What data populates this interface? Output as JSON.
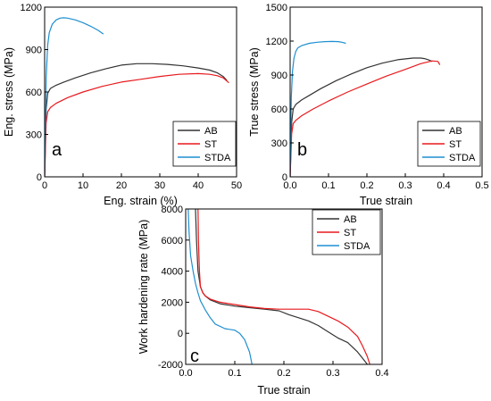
{
  "chart_data": [
    {
      "type": "line",
      "panel_label": "a",
      "xlabel": "Eng. strain (%)",
      "ylabel": "Eng. stress (MPa)",
      "xlim": [
        0,
        50
      ],
      "ylim": [
        0,
        1200
      ],
      "xticks": [
        0,
        10,
        20,
        30,
        40,
        50
      ],
      "yticks": [
        0,
        300,
        600,
        900,
        1200
      ],
      "grid": false,
      "legend": "bottom-right",
      "series": [
        {
          "name": "AB",
          "color": "#333333",
          "x": [
            0,
            0.4,
            0.8,
            1.5,
            3,
            5,
            8,
            12,
            16,
            20,
            24,
            28,
            32,
            36,
            40,
            43,
            45,
            46.5,
            47.5
          ],
          "y": [
            0,
            480,
            590,
            625,
            648,
            670,
            700,
            735,
            765,
            790,
            800,
            800,
            795,
            785,
            770,
            755,
            735,
            710,
            680
          ]
        },
        {
          "name": "ST",
          "color": "#e8191d",
          "x": [
            0,
            0.4,
            0.8,
            1.5,
            3,
            6,
            10,
            15,
            20,
            25,
            30,
            35,
            40,
            43,
            45,
            46.5,
            48
          ],
          "y": [
            0,
            380,
            460,
            490,
            520,
            560,
            600,
            640,
            670,
            690,
            710,
            725,
            730,
            725,
            715,
            700,
            665
          ]
        },
        {
          "name": "STDA",
          "color": "#1e8fd0",
          "x": [
            0,
            0.4,
            0.8,
            1.2,
            2,
            3,
            4,
            5,
            6,
            8,
            10,
            12,
            14,
            15.3
          ],
          "y": [
            0,
            700,
            930,
            1020,
            1080,
            1110,
            1122,
            1125,
            1122,
            1110,
            1090,
            1065,
            1035,
            1010
          ]
        }
      ]
    },
    {
      "type": "line",
      "panel_label": "b",
      "xlabel": "True strain",
      "ylabel": "True stress (MPa)",
      "xlim": [
        0,
        0.5
      ],
      "ylim": [
        0,
        1500
      ],
      "xticks": [
        0.0,
        0.1,
        0.2,
        0.3,
        0.4,
        0.5
      ],
      "yticks": [
        0,
        300,
        600,
        900,
        1200,
        1500
      ],
      "xtick_labels": [
        "0.0",
        "0.1",
        "0.2",
        "0.3",
        "0.4",
        "0.5"
      ],
      "grid": false,
      "legend": "bottom-right",
      "series": [
        {
          "name": "AB",
          "color": "#333333",
          "x": [
            0,
            0.004,
            0.008,
            0.015,
            0.03,
            0.05,
            0.08,
            0.12,
            0.16,
            0.2,
            0.24,
            0.28,
            0.32,
            0.34,
            0.35,
            0.36,
            0.37
          ],
          "y": [
            0,
            480,
            600,
            640,
            680,
            720,
            780,
            850,
            910,
            965,
            1005,
            1035,
            1050,
            1050,
            1045,
            1035,
            1020
          ]
        },
        {
          "name": "ST",
          "color": "#e8191d",
          "x": [
            0,
            0.004,
            0.008,
            0.015,
            0.03,
            0.06,
            0.1,
            0.15,
            0.2,
            0.25,
            0.3,
            0.34,
            0.37,
            0.385,
            0.39
          ],
          "y": [
            0,
            380,
            470,
            500,
            540,
            600,
            670,
            750,
            820,
            890,
            950,
            1000,
            1025,
            1020,
            990
          ]
        },
        {
          "name": "STDA",
          "color": "#1e8fd0",
          "x": [
            0,
            0.003,
            0.006,
            0.01,
            0.015,
            0.02,
            0.03,
            0.05,
            0.07,
            0.09,
            0.11,
            0.125,
            0.135,
            0.145
          ],
          "y": [
            0,
            700,
            930,
            1050,
            1110,
            1140,
            1160,
            1180,
            1190,
            1195,
            1197,
            1195,
            1190,
            1180
          ]
        }
      ]
    },
    {
      "type": "line",
      "panel_label": "c",
      "xlabel": "True strain",
      "ylabel": "Work hardening rate (MPa)",
      "xlim": [
        0,
        0.4
      ],
      "ylim": [
        -2000,
        8000
      ],
      "xticks": [
        0.0,
        0.1,
        0.2,
        0.3,
        0.4
      ],
      "yticks": [
        -2000,
        0,
        2000,
        4000,
        6000,
        8000
      ],
      "xtick_labels": [
        "0.0",
        "0.1",
        "0.2",
        "0.3",
        "0.4"
      ],
      "grid": false,
      "legend": "top-right",
      "series": [
        {
          "name": "AB",
          "color": "#333333",
          "x": [
            0.02,
            0.022,
            0.025,
            0.03,
            0.035,
            0.04,
            0.05,
            0.07,
            0.1,
            0.13,
            0.16,
            0.19,
            0.21,
            0.23,
            0.25,
            0.27,
            0.29,
            0.31,
            0.33,
            0.35,
            0.36,
            0.37
          ],
          "y": [
            8000,
            6000,
            4000,
            3000,
            2600,
            2400,
            2150,
            1900,
            1750,
            1650,
            1550,
            1450,
            1200,
            1000,
            800,
            500,
            100,
            -300,
            -600,
            -1200,
            -1600,
            -2000
          ]
        },
        {
          "name": "ST",
          "color": "#e8191d",
          "x": [
            0.025,
            0.026,
            0.028,
            0.03,
            0.035,
            0.04,
            0.05,
            0.07,
            0.1,
            0.13,
            0.16,
            0.19,
            0.22,
            0.25,
            0.27,
            0.29,
            0.31,
            0.33,
            0.35,
            0.36,
            0.37,
            0.375
          ],
          "y": [
            8000,
            6000,
            4000,
            3000,
            2600,
            2400,
            2200,
            2000,
            1850,
            1700,
            1600,
            1550,
            1550,
            1550,
            1400,
            1100,
            800,
            400,
            -200,
            -800,
            -1500,
            -2000
          ]
        },
        {
          "name": "STDA",
          "color": "#1e8fd0",
          "x": [
            0.005,
            0.007,
            0.01,
            0.015,
            0.02,
            0.025,
            0.03,
            0.04,
            0.05,
            0.06,
            0.08,
            0.1,
            0.11,
            0.12,
            0.13,
            0.135
          ],
          "y": [
            8000,
            6500,
            5000,
            4000,
            3200,
            2600,
            2100,
            1500,
            1000,
            600,
            300,
            200,
            0,
            -400,
            -1200,
            -2000
          ]
        }
      ]
    }
  ]
}
